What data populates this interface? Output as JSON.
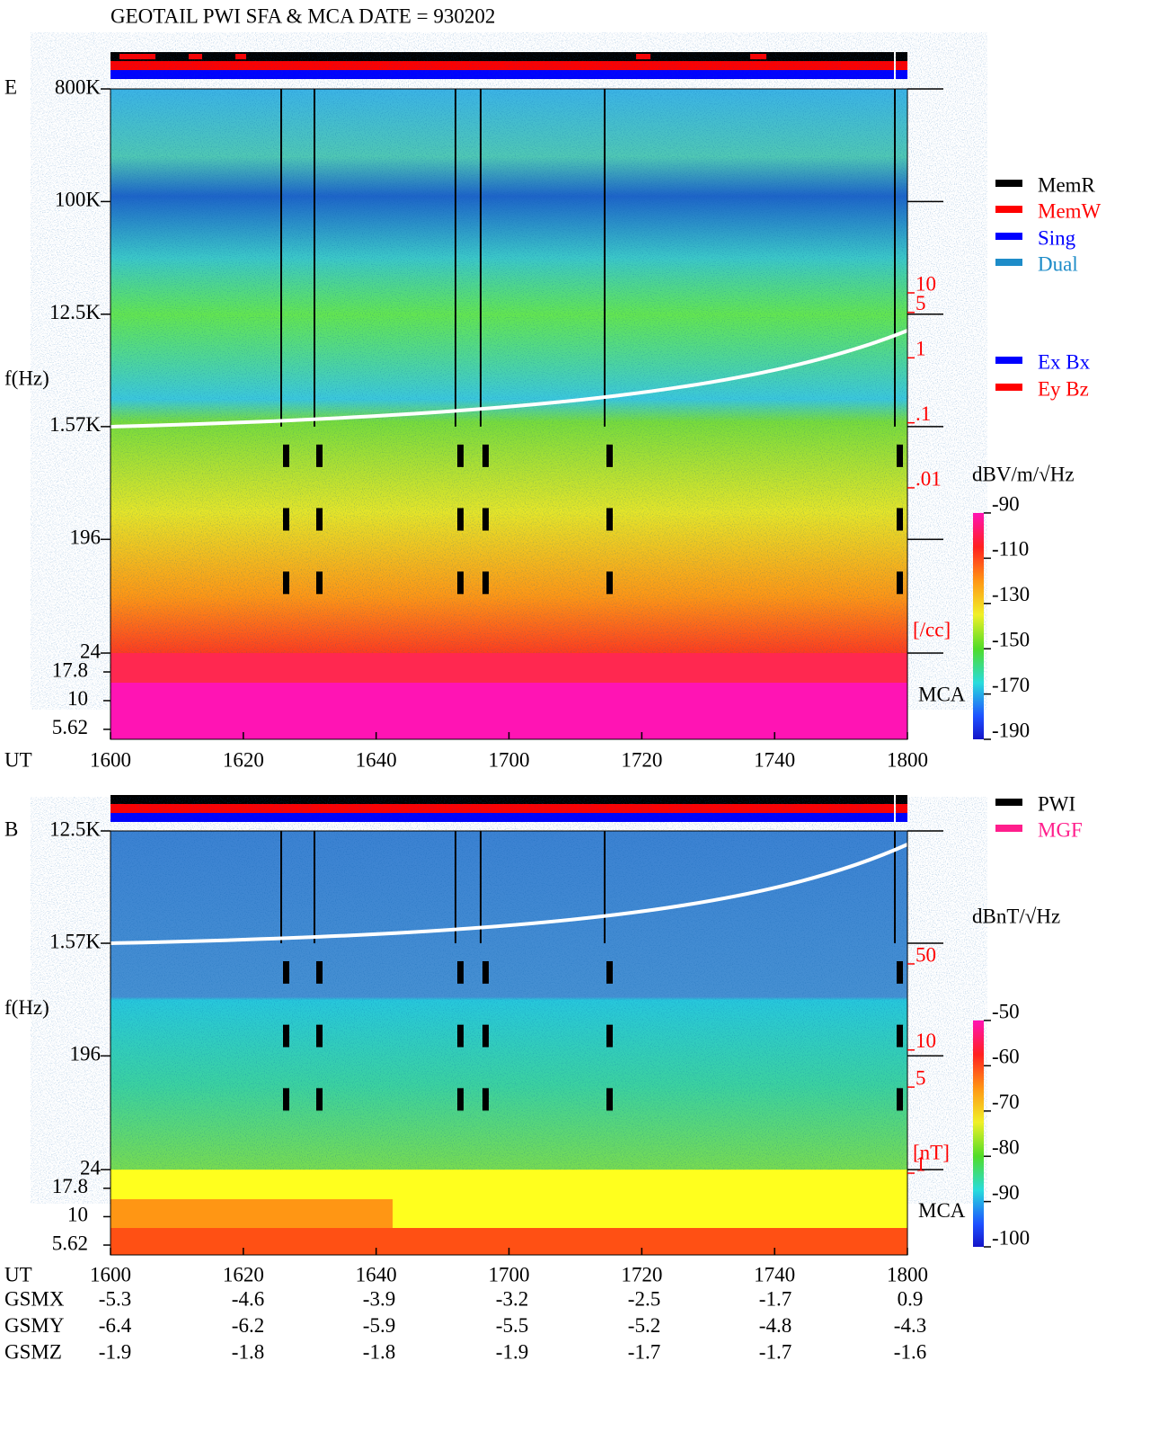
{
  "title": "GEOTAIL  PWI SFA & MCA   DATE = 930202",
  "chart_data": [
    {
      "type": "spectrogram",
      "panel": "E",
      "y_label": "f(Hz)",
      "x_label": "UT",
      "xticks": [
        "1600",
        "1620",
        "1640",
        "1700",
        "1720",
        "1740",
        "1800"
      ],
      "yscale": "log",
      "ylim": [
        24,
        800000
      ],
      "yticks": [
        {
          "value": 800000,
          "label": "800K"
        },
        {
          "value": 100000,
          "label": "100K"
        },
        {
          "value": 12500,
          "label": "12.5K"
        },
        {
          "value": 1570,
          "label": "1.57K"
        },
        196,
        24
      ],
      "mca_label": "MCA",
      "mca_ylim": [
        4.6,
        26
      ],
      "mca_ticks": [
        17.8,
        10,
        5.62
      ],
      "colorbar_label": "dBV/m/√Hz",
      "clim": [
        -190,
        -90
      ],
      "cticks": [
        -90,
        -110,
        -130,
        -150,
        -170,
        -190
      ],
      "density_unit": "[/cc]",
      "density_lim": [
        0.01,
        10
      ],
      "density_ticks": [
        10,
        5,
        1,
        {
          "value": 0.1,
          "label": ".1"
        },
        {
          "value": 0.01,
          "label": ".01"
        }
      ],
      "legend": [
        {
          "name": "MemR",
          "color": "#000000"
        },
        {
          "name": "MemW",
          "color": "#ff0000"
        },
        {
          "name": "Sing",
          "color": "#0000ff"
        },
        {
          "name": "Dual",
          "color": "#1e8cc8"
        }
      ],
      "legend2": [
        {
          "name": "Ex Bx",
          "color": "#0000ff"
        },
        {
          "name": "Ey Bz",
          "color": "#ff0000"
        }
      ]
    },
    {
      "type": "spectrogram",
      "panel": "B",
      "y_label": "f(Hz)",
      "x_label": "UT",
      "xticks": [
        "1600",
        "1620",
        "1640",
        "1700",
        "1720",
        "1740",
        "1800"
      ],
      "yscale": "log",
      "ylim": [
        24,
        12500
      ],
      "yticks": [
        {
          "value": 12500,
          "label": "12.5K"
        },
        {
          "value": 1570,
          "label": "1.57K"
        },
        196,
        24
      ],
      "mca_label": "MCA",
      "mca_ylim": [
        4.6,
        26
      ],
      "mca_ticks": [
        17.8,
        10,
        5.62
      ],
      "colorbar_label": "dBnT/√Hz",
      "clim": [
        -100,
        -50
      ],
      "cticks": [
        -50,
        -60,
        -70,
        -80,
        -90,
        -100
      ],
      "density_unit": "[nT]",
      "density_lim": [
        1,
        50
      ],
      "density_ticks": [
        50,
        10,
        5,
        1
      ],
      "legend": [
        {
          "name": "PWI",
          "color": "#000000"
        },
        {
          "name": "MGF",
          "color": "#ff1e8c"
        }
      ]
    }
  ],
  "orbit": {
    "rows": [
      {
        "name": "GSMX",
        "values": [
          -5.3,
          -4.6,
          -3.9,
          -3.2,
          -2.5,
          -1.7,
          0.9
        ]
      },
      {
        "name": "GSMY",
        "values": [
          -6.4,
          -6.2,
          -5.9,
          -5.5,
          -5.2,
          -4.8,
          -4.3
        ]
      },
      {
        "name": "GSMZ",
        "values": [
          -1.9,
          -1.8,
          -1.8,
          -1.9,
          -1.7,
          -1.7,
          -1.6
        ]
      }
    ]
  }
}
